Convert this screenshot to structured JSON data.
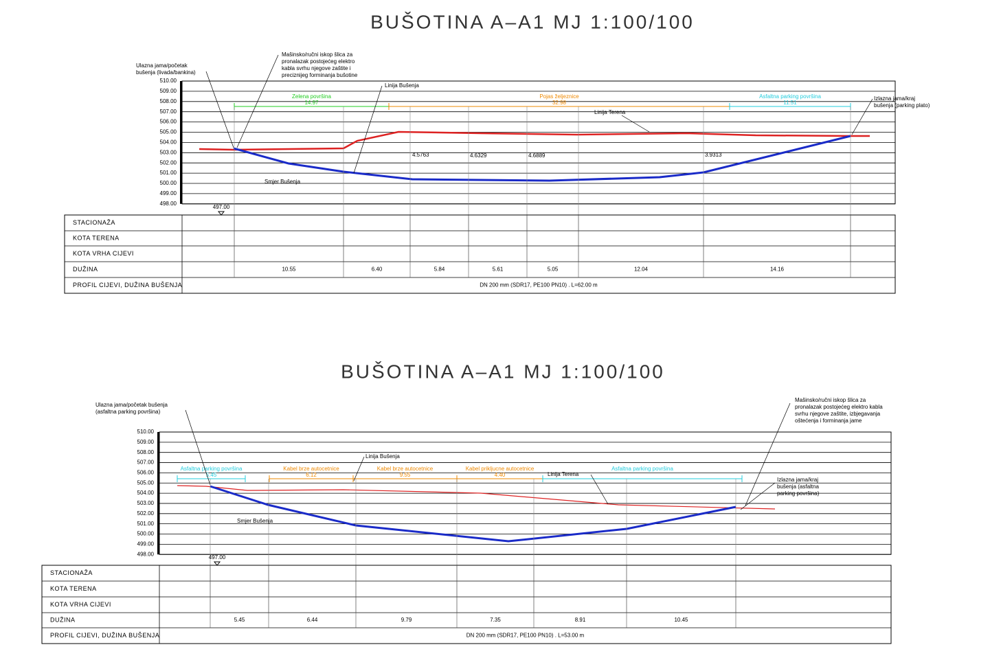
{
  "drawings": [
    {
      "title": "BUŠOTINA A–A1 MJ 1:100/100",
      "entry": [
        "Ulazna jama/početak",
        "bušenja  (livada/bankina)"
      ],
      "excavation": [
        "Mašinsko/ručni iskop šlica za",
        "pronalazak postojećeg elektro",
        "kabla svrhu njegove zaštite i",
        "preciznijeg forminanja bušotine"
      ],
      "exit": [
        "Izlazna jama/kraj",
        "bušenja  (parking plato)"
      ],
      "drill_line": "Linija Bušenja",
      "terrain_line": "Linija Terena",
      "direction": "Smjer Bušenja",
      "datum": "497.00",
      "zones": [
        {
          "label": "Zelena površina",
          "length": "14.97"
        },
        {
          "label": "Pojas željeznice",
          "length": "32.98"
        },
        {
          "label": "Asfaltna parking površina",
          "length": "11.51"
        }
      ],
      "depths": [
        "4.5763",
        "4.6329",
        "4.6889",
        "3.9313"
      ],
      "levels": [
        "510.00",
        "509.00",
        "508.00",
        "507.00",
        "506.00",
        "505.00",
        "504.00",
        "503.00",
        "502.00",
        "501.00",
        "500.00",
        "499.00",
        "498.00"
      ],
      "table": {
        "headers": [
          "STACIONAŽA",
          "KOTA TERENA",
          "KOTA VRHA CIJEVI",
          "DUŽINA",
          "PROFIL CIJEVI, DUŽINA BUŠENJA"
        ],
        "lengths": [
          "10.55",
          "6.40",
          "5.84",
          "5.61",
          "5.05",
          "12.04",
          "14.16"
        ],
        "profile": "DN 200 mm (SDR17, PE100 PN10) . L=62.00 m"
      }
    },
    {
      "title": "BUŠOTINA A–A1 MJ 1:100/100",
      "entry": [
        "Ulazna jama/početak bušenja",
        "(asfaltna parking površina)"
      ],
      "excavation": [
        "Mašinsko/ručni iskop šlica za",
        "pronalazak postojećeg elektro kabla",
        "svrhu njegove zaštite, izbjegavanja",
        "oštećenja i forminanja jame"
      ],
      "exit": [
        "Izlazna jama/kraj",
        "bušenja   (asfaltna",
        "parking površina)"
      ],
      "drill_line": "Linija Bušenja",
      "terrain_line": "Linija Terena",
      "direction": "Smjer Bušenja",
      "datum": "497.00",
      "zones": [
        {
          "label": "Asfaltna parking površina",
          "length": "5.45"
        },
        {
          "label": "Kabel brze autocetnice",
          "length": "6.12"
        },
        {
          "label": "Kabel brze autocetnice",
          "length": "9.55"
        },
        {
          "label": "Kabel prikljucne autocetnice",
          "length": "4.40"
        },
        {
          "label": "Asfaltna parking površina"
        }
      ],
      "levels": [
        "510.00",
        "509.00",
        "508.00",
        "507.00",
        "506.00",
        "505.00",
        "504.00",
        "503.00",
        "502.00",
        "501.00",
        "500.00",
        "499.00",
        "498.00"
      ],
      "table": {
        "headers": [
          "STACIONAŽA",
          "KOTA TERENA",
          "KOTA VRHA CIJEVI",
          "DUŽINA",
          "PROFIL CIJEVI, DUŽINA BUŠENJA"
        ],
        "lengths": [
          "5.45",
          "6.44",
          "9.79",
          "7.35",
          "8.91",
          "10.45"
        ],
        "profile": "DN 200 mm (SDR17, PE100 PN10) . L=53.00 m"
      }
    }
  ]
}
